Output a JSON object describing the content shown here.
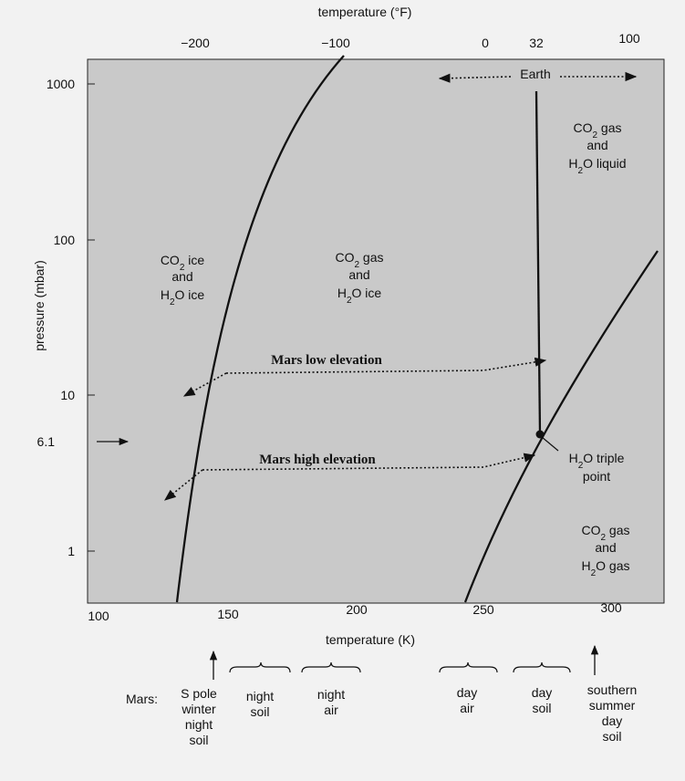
{
  "diagram": {
    "top_axis": {
      "title": "temperature (°F)",
      "ticks": [
        "−200",
        "−100",
        "0",
        "32",
        "100"
      ]
    },
    "bottom_axis": {
      "title": "temperature (K)",
      "ticks": [
        "100",
        "150",
        "200",
        "250",
        "300"
      ]
    },
    "left_axis": {
      "title": "pressure (mbar)",
      "ticks": [
        "1000",
        "100",
        "10",
        "6.1",
        "1"
      ]
    },
    "regions": {
      "co2_ice_h2o_ice": [
        "CO",
        "2",
        " ice",
        "and",
        "H",
        "2",
        "O ice"
      ],
      "co2_gas_h2o_ice": [
        "CO",
        "2",
        " gas",
        "and",
        "H",
        "2",
        "O ice"
      ],
      "co2_gas_h2o_liquid": [
        "CO",
        "2",
        " gas",
        "and",
        "H",
        "2",
        "O liquid"
      ],
      "co2_gas_h2o_gas": [
        "CO",
        "2",
        " gas",
        "and",
        "H",
        "2",
        "O gas"
      ]
    },
    "earth_label": "Earth",
    "mars_low": "Mars low elevation",
    "mars_high": "Mars high elevation",
    "triple_point": [
      "H",
      "2",
      "O triple",
      "point"
    ]
  },
  "mars_row": {
    "prefix": "Mars:",
    "items": [
      {
        "lines": [
          "S pole",
          "winter",
          "night",
          "soil"
        ]
      },
      {
        "lines": [
          "night",
          "soil"
        ]
      },
      {
        "lines": [
          "night",
          "air"
        ]
      },
      {
        "lines": [
          "day",
          "air"
        ]
      },
      {
        "lines": [
          "day",
          "soil"
        ]
      },
      {
        "lines": [
          "southern",
          "summer",
          "day",
          "soil"
        ]
      }
    ]
  }
}
